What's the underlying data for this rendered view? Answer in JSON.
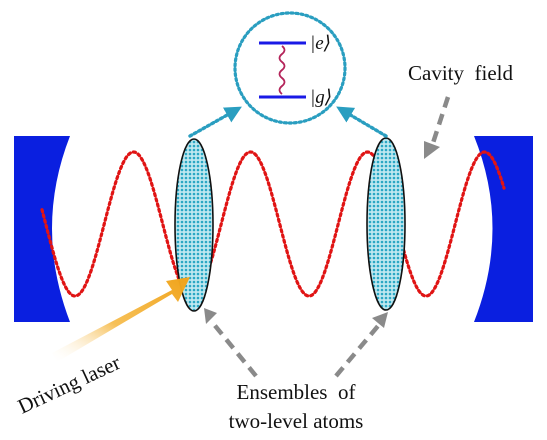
{
  "labels": {
    "cavity_field": "Cavity  field",
    "driving_laser": "Driving laser",
    "ensembles_line1": "Ensembles  of",
    "ensembles_line2": "two-level atoms",
    "excited_state": "|e⟩",
    "ground_state": "|g⟩"
  },
  "colors": {
    "mirror": "#0a1fe0",
    "cavity_wave": "#e01414",
    "atom_fill": "#4fc1d6",
    "inset_circle": "#2a9ec0",
    "energy_levels": "#1a1ae6",
    "photon": "#b4245a",
    "arrow_gray": "#8a8a8a",
    "laser_arrow": "#f0a31a"
  }
}
